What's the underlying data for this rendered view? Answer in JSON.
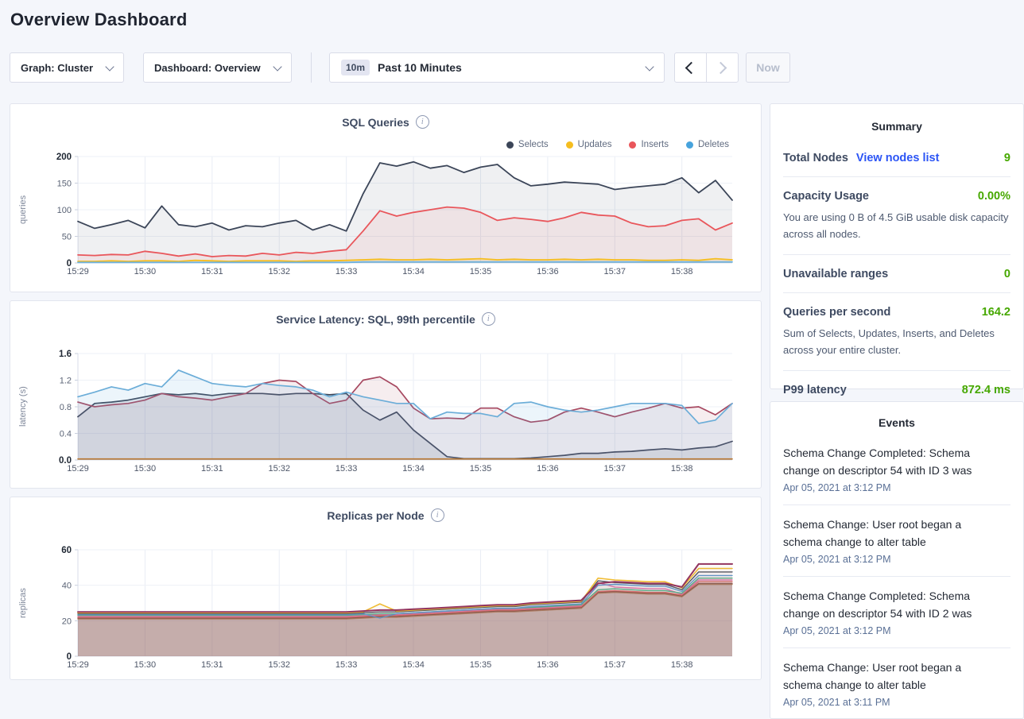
{
  "page": {
    "title": "Overview Dashboard"
  },
  "icons": {
    "info": "i"
  },
  "toolbar": {
    "graph_dropdown_label": "Graph: Cluster",
    "dashboard_dropdown_label": "Dashboard: Overview",
    "time_badge": "10m",
    "time_range_label": "Past 10 Minutes",
    "now_label": "Now"
  },
  "colors": {
    "accent_green": "#46a800",
    "link_blue": "#2b54f5",
    "navy": "#3b4558"
  },
  "summary": {
    "title": "Summary",
    "total_nodes_label": "Total Nodes",
    "total_nodes_link": "View nodes list",
    "total_nodes_value": "9",
    "capacity_label": "Capacity Usage",
    "capacity_value": "0.00%",
    "capacity_desc": "You are using 0 B of 4.5 GiB usable disk capacity across all nodes.",
    "unavailable_label": "Unavailable ranges",
    "unavailable_value": "0",
    "qps_label": "Queries per second",
    "qps_value": "164.2",
    "qps_desc": "Sum of Selects, Updates, Inserts, and Deletes across your entire cluster.",
    "p99_label": "P99 latency",
    "p99_value": "872.4 ms"
  },
  "events": {
    "title": "Events",
    "items": [
      {
        "text": "Schema Change Completed: Schema change on descriptor 54 with ID 3 was",
        "time": "Apr 05, 2021 at 3:12 PM"
      },
      {
        "text": "Schema Change: User root began a schema change to alter table",
        "time": "Apr 05, 2021 at 3:12 PM"
      },
      {
        "text": "Schema Change Completed: Schema change on descriptor 54 with ID 2 was",
        "time": "Apr 05, 2021 at 3:12 PM"
      },
      {
        "text": "Schema Change: User root began a schema change to alter table",
        "time": "Apr 05, 2021 at 3:11 PM"
      }
    ]
  },
  "chart_data": [
    {
      "type": "area",
      "title": "SQL Queries",
      "ylabel": "queries",
      "ylim": [
        0,
        200
      ],
      "yticks": [
        0,
        50,
        100,
        150,
        200
      ],
      "ytick_labels": [
        "0",
        "50",
        "100",
        "150",
        "200"
      ],
      "x_categories": [
        "15:29",
        "15:30",
        "15:31",
        "15:32",
        "15:33",
        "15:34",
        "15:35",
        "15:36",
        "15:37",
        "15:38"
      ],
      "legend": [
        {
          "label": "Selects",
          "color": "#3b4558"
        },
        {
          "label": "Updates",
          "color": "#f5bd1f"
        },
        {
          "label": "Inserts",
          "color": "#e9565b"
        },
        {
          "label": "Deletes",
          "color": "#47a3dd"
        }
      ],
      "series": [
        {
          "name": "Selects",
          "color": "#3b4558",
          "width": 1.8,
          "fill": "rgba(57,68,85,0.08)",
          "values": [
            78,
            65,
            72,
            80,
            66,
            107,
            72,
            68,
            75,
            62,
            70,
            68,
            75,
            80,
            62,
            72,
            60,
            130,
            188,
            182,
            190,
            178,
            183,
            170,
            180,
            185,
            160,
            145,
            148,
            152,
            150,
            148,
            138,
            142,
            145,
            148,
            160,
            132,
            155,
            118
          ]
        },
        {
          "name": "Inserts",
          "color": "#e9565b",
          "width": 1.8,
          "fill": "rgba(233,95,99,0.09)",
          "values": [
            15,
            14,
            16,
            15,
            22,
            18,
            13,
            17,
            12,
            14,
            13,
            18,
            15,
            20,
            18,
            22,
            25,
            60,
            98,
            88,
            95,
            100,
            105,
            103,
            95,
            80,
            85,
            82,
            78,
            85,
            95,
            90,
            88,
            75,
            68,
            70,
            80,
            83,
            62,
            75
          ]
        },
        {
          "name": "Updates",
          "color": "#f5bd1f",
          "width": 1.8,
          "fill": "rgba(245,189,31,0.15)",
          "values": [
            3,
            3,
            4,
            3,
            4,
            4,
            3,
            5,
            4,
            3,
            4,
            4,
            4,
            3,
            4,
            4,
            5,
            6,
            7,
            6,
            6,
            7,
            6,
            7,
            8,
            6,
            7,
            6,
            6,
            7,
            6,
            7,
            6,
            6,
            5,
            5,
            6,
            5,
            8,
            6
          ]
        },
        {
          "name": "Deletes",
          "color": "#6fb3e0",
          "width": 1.8,
          "fill": "rgba(111,179,224,0.25)",
          "values": [
            1,
            1,
            1,
            1,
            1,
            1,
            1,
            1,
            1,
            1,
            1,
            1,
            1,
            1,
            1,
            1,
            1,
            2,
            2,
            2,
            2,
            2,
            2,
            2,
            2,
            2,
            2,
            2,
            2,
            2,
            2,
            2,
            2,
            2,
            2,
            2,
            2,
            2,
            2,
            2
          ]
        }
      ]
    },
    {
      "type": "area",
      "title": "Service Latency: SQL, 99th percentile",
      "ylabel": "latency (s)",
      "ylim": [
        0,
        1.6
      ],
      "yticks": [
        0,
        0.4,
        0.8,
        1.2,
        1.6
      ],
      "ytick_labels": [
        "0.0",
        "0.4",
        "0.8",
        "1.2",
        "1.6"
      ],
      "x_categories": [
        "15:29",
        "15:30",
        "15:31",
        "15:32",
        "15:33",
        "15:34",
        "15:35",
        "15:36",
        "15:37",
        "15:38"
      ],
      "series": [
        {
          "name": "latency-navy",
          "color": "#3b4558",
          "width": 1.7,
          "fill": "rgba(87,96,128,0.14)",
          "values": [
            0.65,
            0.85,
            0.87,
            0.9,
            0.95,
            1.0,
            0.98,
            1.0,
            0.97,
            1.0,
            1.0,
            1.0,
            0.98,
            1.0,
            1.0,
            0.98,
            1.0,
            0.75,
            0.6,
            0.72,
            0.45,
            0.25,
            0.05,
            0.02,
            0.02,
            0.02,
            0.02,
            0.03,
            0.05,
            0.07,
            0.1,
            0.1,
            0.12,
            0.13,
            0.15,
            0.17,
            0.15,
            0.18,
            0.2,
            0.28
          ]
        },
        {
          "name": "latency-maroon",
          "color": "#a6475f",
          "width": 1.7,
          "fill": "rgba(171,74,99,0.10)",
          "values": [
            0.87,
            0.8,
            0.83,
            0.85,
            0.9,
            1.0,
            0.95,
            0.93,
            0.9,
            0.95,
            1.0,
            1.15,
            1.2,
            1.18,
            1.0,
            0.85,
            0.9,
            1.2,
            1.25,
            1.1,
            0.78,
            0.62,
            0.63,
            0.62,
            0.78,
            0.78,
            0.65,
            0.57,
            0.6,
            0.72,
            0.78,
            0.72,
            0.65,
            0.72,
            0.78,
            0.85,
            0.78,
            0.8,
            0.68,
            0.85
          ]
        },
        {
          "name": "latency-blue",
          "color": "#6badd8",
          "width": 1.7,
          "fill": "rgba(111,179,224,0.13)",
          "values": [
            0.95,
            1.02,
            1.1,
            1.05,
            1.15,
            1.1,
            1.35,
            1.25,
            1.15,
            1.12,
            1.1,
            1.15,
            1.12,
            1.1,
            1.05,
            0.95,
            1.02,
            0.95,
            0.9,
            0.85,
            0.85,
            0.62,
            0.72,
            0.7,
            0.7,
            0.65,
            0.85,
            0.87,
            0.8,
            0.75,
            0.72,
            0.75,
            0.8,
            0.85,
            0.85,
            0.85,
            0.82,
            0.55,
            0.6,
            0.85
          ]
        },
        {
          "name": "latency-baseline",
          "color": "#b9772f",
          "width": 1.6,
          "values": [
            0.015,
            0.015,
            0.015,
            0.015,
            0.015,
            0.015,
            0.015,
            0.015,
            0.015,
            0.015,
            0.015,
            0.015,
            0.015,
            0.015,
            0.015,
            0.015,
            0.015,
            0.015,
            0.015,
            0.015,
            0.015,
            0.015,
            0.015,
            0.015,
            0.015,
            0.015,
            0.015,
            0.015,
            0.015,
            0.015,
            0.015,
            0.015,
            0.015,
            0.015,
            0.015,
            0.015,
            0.015,
            0.015,
            0.015,
            0.015
          ]
        }
      ]
    },
    {
      "type": "area",
      "title": "Replicas per Node",
      "ylabel": "replicas",
      "ylim": [
        0,
        60
      ],
      "yticks": [
        0,
        20,
        40,
        60
      ],
      "ytick_labels": [
        "0",
        "20",
        "40",
        "60"
      ],
      "x_categories": [
        "15:29",
        "15:30",
        "15:31",
        "15:32",
        "15:33",
        "15:34",
        "15:35",
        "15:36",
        "15:37",
        "15:38"
      ],
      "series": [
        {
          "name": "node-9",
          "color": "#b98a63",
          "width": 1.4,
          "fill": "rgba(146,104,98,0.34)",
          "values": [
            21,
            21,
            21,
            21,
            21,
            21,
            21,
            21,
            21,
            21,
            21,
            21,
            21,
            21,
            21,
            21,
            21,
            21.5,
            22,
            22,
            22.5,
            23,
            23.5,
            24,
            24.5,
            25,
            25,
            25.5,
            26,
            26.5,
            27,
            35.5,
            36,
            35.5,
            35,
            35,
            33.5,
            40.5,
            40.5,
            40.5
          ]
        },
        {
          "name": "node-8",
          "color": "#8a584d",
          "width": 1.4,
          "fill": "rgba(146,104,98,0.04)",
          "values": [
            21.5,
            21.5,
            21.5,
            21.5,
            21.5,
            21.5,
            21.5,
            21.5,
            21.5,
            21.5,
            21.5,
            21.5,
            21.5,
            21.5,
            21.5,
            21.5,
            21.5,
            22,
            22.5,
            22.5,
            23,
            23.5,
            24,
            24.5,
            25,
            25.5,
            25.5,
            26,
            26.5,
            27,
            27.5,
            36,
            36.5,
            36,
            35.5,
            35.5,
            34,
            41,
            41,
            41
          ]
        },
        {
          "name": "node-7",
          "color": "#e4726f",
          "width": 1.4,
          "fill": "rgba(146,104,98,0.04)",
          "values": [
            22,
            22,
            22,
            22,
            22,
            22,
            22,
            22,
            22,
            22,
            22,
            22,
            22,
            22,
            22,
            22,
            22,
            22.5,
            23,
            23,
            23.5,
            24,
            24.5,
            25,
            25.5,
            26,
            26,
            26.5,
            27,
            27.5,
            28,
            36.5,
            37,
            36.5,
            36,
            36,
            34.5,
            42,
            42,
            42
          ]
        },
        {
          "name": "node-6",
          "color": "#e679b1",
          "width": 1.4,
          "fill": "rgba(146,104,98,0.04)",
          "values": [
            22.5,
            22.5,
            22.5,
            22.5,
            22.5,
            22.5,
            22.5,
            22.5,
            22.5,
            22.5,
            22.5,
            22.5,
            22.5,
            22.5,
            22.5,
            22.5,
            22.5,
            23,
            23.5,
            23.5,
            24,
            24.5,
            25,
            25.5,
            26,
            26.5,
            26.5,
            27,
            27.5,
            28,
            28.5,
            41.5,
            39,
            38.5,
            38,
            38,
            35,
            43,
            43,
            43
          ]
        },
        {
          "name": "node-5",
          "color": "#53b68c",
          "width": 1.4,
          "fill": "rgba(146,104,98,0.04)",
          "values": [
            23,
            23,
            23,
            23,
            23,
            23,
            23,
            23,
            23,
            23,
            23,
            23,
            23,
            23,
            23,
            23,
            23,
            23.5,
            24,
            24,
            24.5,
            25,
            25.5,
            26,
            26.5,
            27,
            27,
            27.5,
            28,
            28.5,
            29,
            37.5,
            38,
            37.5,
            37,
            37,
            35.5,
            44,
            44,
            44
          ]
        },
        {
          "name": "node-4",
          "color": "#5b9bd1",
          "width": 1.4,
          "fill": "rgba(146,104,98,0.04)",
          "values": [
            23.5,
            23.5,
            23.5,
            23.5,
            23.5,
            23.5,
            23.5,
            23.5,
            23.5,
            23.5,
            23.5,
            23.5,
            23.5,
            23.5,
            23.5,
            23.5,
            23.5,
            24,
            21.5,
            24,
            24.5,
            25,
            25.5,
            26,
            26.5,
            27,
            27,
            28,
            28.5,
            29,
            29.5,
            40,
            40.5,
            40,
            39.5,
            39.5,
            36.5,
            45.5,
            45.5,
            45.5
          ]
        },
        {
          "name": "node-3",
          "color": "#4f565f",
          "width": 1.4,
          "fill": "rgba(146,104,98,0.04)",
          "values": [
            24,
            24,
            24,
            24,
            24,
            24,
            24,
            24,
            24,
            24,
            24,
            24,
            24,
            24,
            24,
            24,
            24,
            24.5,
            25,
            25,
            25.5,
            26,
            26.5,
            27,
            27.5,
            28,
            28,
            29,
            29.5,
            30,
            30.5,
            42.5,
            41.5,
            41,
            40.5,
            40.5,
            37.5,
            47.5,
            47.5,
            47.5
          ]
        },
        {
          "name": "node-2",
          "color": "#f0bc33",
          "width": 1.6,
          "fill": "rgba(146,104,98,0.04)",
          "values": [
            24.5,
            24.5,
            24.5,
            24.5,
            24.5,
            24.5,
            24.5,
            24.5,
            24.5,
            24.5,
            24.5,
            24.5,
            24.5,
            24.5,
            24.5,
            24.5,
            24.5,
            25,
            29.5,
            25.5,
            26,
            26.5,
            27,
            27.5,
            28,
            28.5,
            28.5,
            29.5,
            30,
            30.5,
            31,
            44,
            43,
            42.5,
            42,
            42,
            38.5,
            49.5,
            49.5,
            49.5
          ]
        },
        {
          "name": "node-1",
          "color": "#93355f",
          "width": 2,
          "fill": "rgba(146,104,98,0.04)",
          "values": [
            25,
            25,
            25,
            25,
            25,
            25,
            25,
            25,
            25,
            25,
            25,
            25,
            25,
            25,
            25,
            25,
            25,
            25.5,
            26,
            26,
            26.5,
            27,
            27.5,
            28,
            28.5,
            29,
            29,
            30,
            30.5,
            31,
            31.5,
            41,
            42,
            41.5,
            41,
            41,
            39,
            52,
            52,
            52
          ]
        }
      ]
    }
  ]
}
